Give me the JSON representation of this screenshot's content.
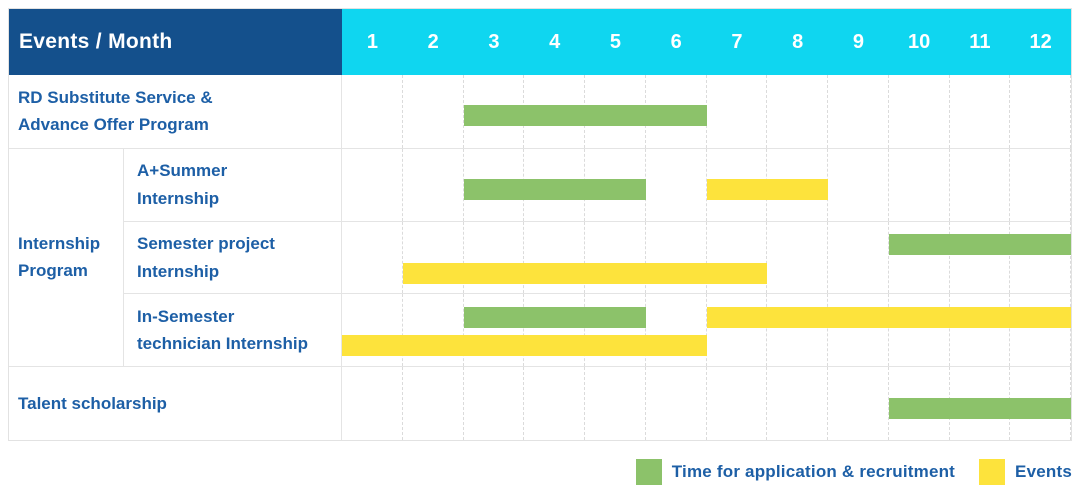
{
  "header": {
    "title": "Events / Month",
    "months": [
      "1",
      "2",
      "3",
      "4",
      "5",
      "6",
      "7",
      "8",
      "9",
      "10",
      "11",
      "12"
    ]
  },
  "colors": {
    "header_bg": "#14508C",
    "months_bg": "#0FD6F0",
    "text_blue": "#1D5FA6",
    "green": "#8CC26A",
    "yellow": "#FDE33C"
  },
  "rows": [
    {
      "kind": "simple",
      "label": "RD Substitute Service &\nAdvance Offer Program",
      "bars": [
        {
          "color": "green",
          "start": 3,
          "end": 7,
          "lane": "low"
        }
      ]
    },
    {
      "kind": "group",
      "label": "Internship\nProgram",
      "subrows": [
        {
          "label": "A+Summer\nInternship",
          "bars": [
            {
              "color": "green",
              "start": 3,
              "end": 6,
              "lane": "low"
            },
            {
              "color": "yellow",
              "start": 7,
              "end": 9,
              "lane": "low"
            }
          ]
        },
        {
          "label": "Semester project\nInternship",
          "bars": [
            {
              "color": "green",
              "start": 10,
              "end": 13,
              "lane": "top"
            },
            {
              "color": "yellow",
              "start": 2,
              "end": 8,
              "lane": "bottom"
            }
          ]
        },
        {
          "label": "In-Semester\ntechnician Internship",
          "bars": [
            {
              "color": "green",
              "start": 3,
              "end": 6,
              "lane": "top"
            },
            {
              "color": "yellow",
              "start": 7,
              "end": 13,
              "lane": "top"
            },
            {
              "color": "yellow",
              "start": 1,
              "end": 7,
              "lane": "bottom"
            }
          ]
        }
      ]
    },
    {
      "kind": "simple",
      "label": "Talent scholarship",
      "bars": [
        {
          "color": "green",
          "start": 10,
          "end": 13,
          "lane": "low"
        }
      ]
    }
  ],
  "legend": {
    "items": [
      {
        "color": "green",
        "label": "Time for application & recruitment"
      },
      {
        "color": "yellow",
        "label": "Events"
      }
    ]
  },
  "chart_data": {
    "type": "bar",
    "subtype": "gantt",
    "title": "Events / Month",
    "xlabel": "Month",
    "x_ticks": [
      1,
      2,
      3,
      4,
      5,
      6,
      7,
      8,
      9,
      10,
      11,
      12
    ],
    "x_range": [
      1,
      12
    ],
    "grid": "vertical-dashed",
    "legend_position": "bottom-right",
    "legend": [
      {
        "name": "Time for application & recruitment",
        "color": "#8CC26A"
      },
      {
        "name": "Events",
        "color": "#FDE33C"
      }
    ],
    "tasks": [
      {
        "row": "RD Substitute Service & Advance Offer Program",
        "group": null,
        "segments": [
          {
            "type": "Time for application & recruitment",
            "start_month": 3,
            "end_month": 6
          }
        ]
      },
      {
        "row": "A+Summer Internship",
        "group": "Internship Program",
        "segments": [
          {
            "type": "Time for application & recruitment",
            "start_month": 3,
            "end_month": 5
          },
          {
            "type": "Events",
            "start_month": 7,
            "end_month": 8
          }
        ]
      },
      {
        "row": "Semester project Internship",
        "group": "Internship Program",
        "segments": [
          {
            "type": "Time for application & recruitment",
            "start_month": 10,
            "end_month": 12
          },
          {
            "type": "Events",
            "start_month": 2,
            "end_month": 7
          }
        ]
      },
      {
        "row": "In-Semester technician Internship",
        "group": "Internship Program",
        "segments": [
          {
            "type": "Time for application & recruitment",
            "start_month": 3,
            "end_month": 5
          },
          {
            "type": "Events",
            "start_month": 7,
            "end_month": 12
          },
          {
            "type": "Events",
            "start_month": 1,
            "end_month": 6
          }
        ]
      },
      {
        "row": "Talent scholarship",
        "group": null,
        "segments": [
          {
            "type": "Time for application & recruitment",
            "start_month": 10,
            "end_month": 12
          }
        ]
      }
    ]
  }
}
